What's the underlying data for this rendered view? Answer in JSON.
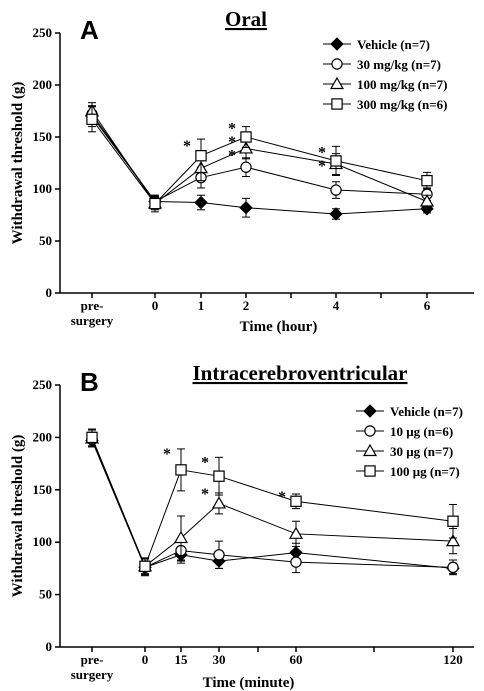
{
  "chart_data": [
    {
      "type": "line",
      "panel_label": "A",
      "title": "Oral",
      "ylabel": "Withdrawal threshold (g)",
      "xlabel": "Time (hour)",
      "ylim": [
        0,
        250
      ],
      "yticks": [
        "0",
        "50",
        "100",
        "150",
        "200",
        "250"
      ],
      "x_categories": [
        "pre-surgery",
        "0",
        "1",
        "2",
        "4",
        "6"
      ],
      "x_tick_labels": [
        "pre-\nsurgery",
        "0",
        "1",
        "2",
        "4",
        "6"
      ],
      "legend_position": "top-right",
      "series": [
        {
          "name": "Vehicle (n=7)",
          "marker": "diamond",
          "values": [
            170,
            88,
            87,
            82,
            76,
            81
          ],
          "errors": [
            10,
            5,
            7,
            9,
            5,
            4
          ]
        },
        {
          "name": "30 mg/kg (n=7)",
          "marker": "circle",
          "values": [
            172,
            88,
            111,
            121,
            99,
            95
          ],
          "errors": [
            8,
            6,
            10,
            9,
            8,
            6
          ]
        },
        {
          "name": "100 mg/kg (n=7)",
          "marker": "triangle",
          "values": [
            175,
            86,
            120,
            139,
            124,
            88
          ],
          "errors": [
            8,
            6,
            12,
            10,
            10,
            6
          ]
        },
        {
          "name": "300 mg/kg (n=6)",
          "marker": "square",
          "values": [
            167,
            86,
            132,
            150,
            127,
            108
          ],
          "errors": [
            12,
            8,
            16,
            10,
            14,
            8
          ]
        }
      ],
      "annotations": [
        {
          "text": "*",
          "x": "1",
          "y": 145
        },
        {
          "text": "*",
          "x": "2",
          "y": 162
        },
        {
          "text": "*",
          "x": "2",
          "y": 149
        },
        {
          "text": "*",
          "x": "2",
          "y": 136
        },
        {
          "text": "*",
          "x": "4",
          "y": 139
        },
        {
          "text": "*",
          "x": "4",
          "y": 126
        }
      ]
    },
    {
      "type": "line",
      "panel_label": "B",
      "title": "Intracerebroventricular",
      "ylabel": "Withdrawal threshold (g)",
      "xlabel": "Time (minute)",
      "ylim": [
        0,
        250
      ],
      "yticks": [
        "0",
        "50",
        "100",
        "150",
        "200",
        "250"
      ],
      "x_categories": [
        "pre-surgery",
        "0",
        "15",
        "30",
        "60",
        "120"
      ],
      "x_tick_labels": [
        "pre-\nsurgery",
        "0",
        "15",
        "30",
        "60",
        "120"
      ],
      "legend_position": "top-right",
      "series": [
        {
          "name": "Vehicle (n=7)",
          "marker": "diamond",
          "values": [
            197,
            76,
            88,
            82,
            90,
            75
          ],
          "errors": [
            6,
            6,
            8,
            7,
            9,
            5
          ]
        },
        {
          "name": "10 μg (n=6)",
          "marker": "circle",
          "values": [
            198,
            76,
            92,
            88,
            81,
            76
          ],
          "errors": [
            7,
            8,
            10,
            13,
            10,
            7
          ]
        },
        {
          "name": "30 μg (n=7)",
          "marker": "triangle",
          "values": [
            199,
            77,
            104,
            137,
            108,
            101
          ],
          "errors": [
            8,
            8,
            21,
            10,
            12,
            12
          ]
        },
        {
          "name": "100 μg (n=7)",
          "marker": "square",
          "values": [
            200,
            77,
            169,
            163,
            139,
            120
          ],
          "errors": [
            8,
            8,
            20,
            18,
            7,
            16
          ]
        }
      ],
      "annotations": [
        {
          "text": "*",
          "x": "15",
          "y": 188
        },
        {
          "text": "*",
          "x": "30",
          "y": 180
        },
        {
          "text": "*",
          "x": "30",
          "y": 150
        },
        {
          "text": "*",
          "x": "60",
          "y": 147
        }
      ]
    }
  ]
}
